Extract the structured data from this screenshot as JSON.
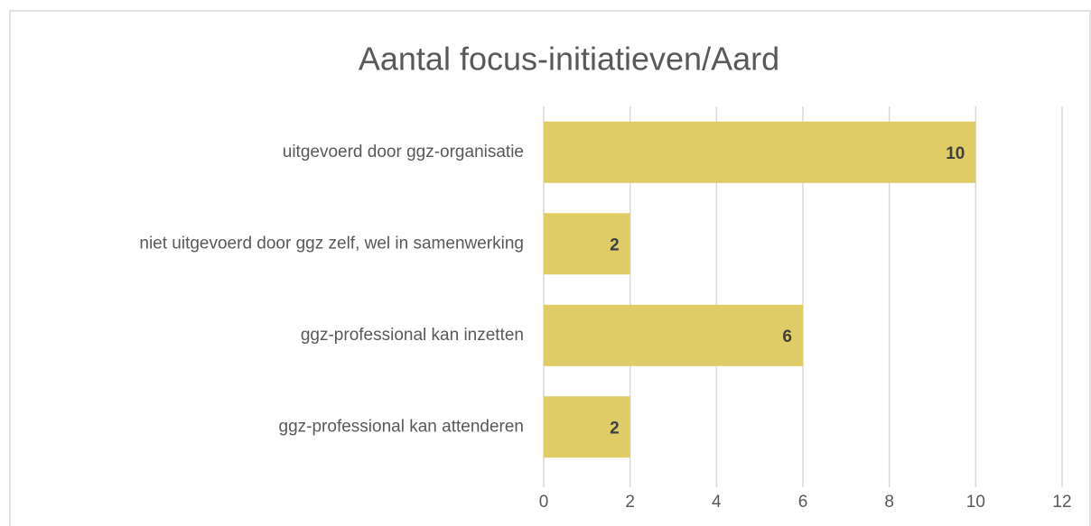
{
  "chart_data": {
    "type": "bar",
    "orientation": "horizontal",
    "title": "Aantal focus-initiatieven/Aard",
    "categories": [
      "uitgevoerd door ggz-organisatie",
      "niet uitgevoerd door ggz zelf, wel in samenwerking",
      "ggz-professional kan inzetten",
      "ggz-professional kan attenderen"
    ],
    "values": [
      10,
      2,
      6,
      2
    ],
    "color": "#dfcc66",
    "xlim": [
      0,
      12
    ],
    "xticks": [
      0,
      2,
      4,
      6,
      8,
      10,
      12
    ],
    "grid": true,
    "data_labels": true
  }
}
